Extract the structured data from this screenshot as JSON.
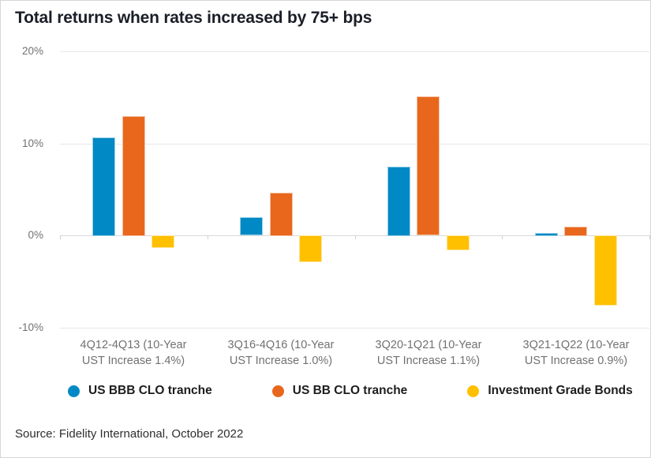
{
  "title": "Total returns when rates increased by 75+ bps",
  "source": "Source: Fidelity International, October 2022",
  "colors": {
    "blue": "#0089C4",
    "orange": "#E8671C",
    "yellow": "#FFC000",
    "gridline": "#e8e8eb",
    "zero_line": "#d9d9dc",
    "axis_text": "#717175",
    "title_text": "#1a1e28"
  },
  "chart_data": {
    "type": "bar",
    "title": "Total returns when rates increased by 75+ bps",
    "categories": [
      "4Q12-4Q13 (10-Year UST Increase 1.4%)",
      "3Q16-4Q16 (10-Year UST Increase 1.0%)",
      "3Q20-1Q21 (10-Year UST Increase 1.1%)",
      "3Q21-1Q22 (10-Year UST Increase 0.9%)"
    ],
    "category_lines": [
      [
        "4Q12-4Q13 (10-Year",
        "UST Increase 1.4%)"
      ],
      [
        "3Q16-4Q16 (10-Year",
        "UST Increase 1.0%)"
      ],
      [
        "3Q20-1Q21 (10-Year",
        "UST Increase 1.1%)"
      ],
      [
        "3Q21-1Q22 (10-Year",
        "UST Increase 0.9%)"
      ]
    ],
    "series": [
      {
        "name": "US BBB CLO tranche",
        "color": "#0089C4",
        "values": [
          10.7,
          2.0,
          7.5,
          0.3
        ]
      },
      {
        "name": "US BB CLO tranche",
        "color": "#E8671C",
        "values": [
          13.0,
          4.7,
          15.1,
          1.0
        ]
      },
      {
        "name": "Investment Grade Bonds",
        "color": "#FFC000",
        "values": [
          -1.4,
          -2.9,
          -1.6,
          -7.6
        ]
      }
    ],
    "ylabel": "",
    "xlabel": "",
    "ylim": [
      -10,
      20
    ],
    "yticks": [
      20,
      10,
      0,
      -10
    ],
    "ytick_labels": [
      "20%",
      "10%",
      "0%",
      "-10%"
    ],
    "grid": true,
    "legend_position": "bottom"
  }
}
